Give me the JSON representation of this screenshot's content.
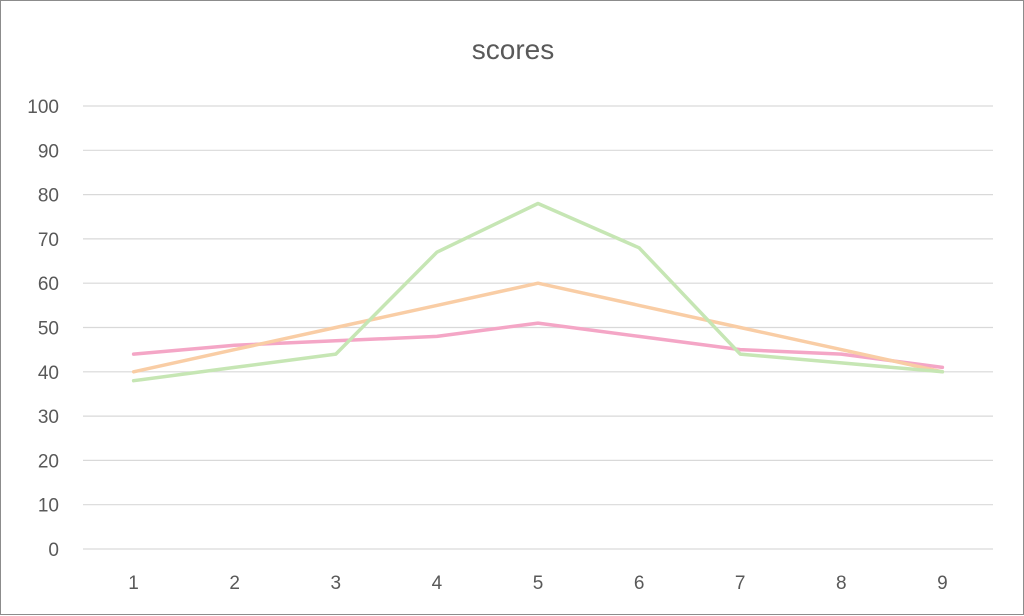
{
  "chart_data": {
    "type": "line",
    "title": "scores",
    "xlabel": "",
    "ylabel": "",
    "x": [
      1,
      2,
      3,
      4,
      5,
      6,
      7,
      8,
      9
    ],
    "ylim": [
      0,
      100
    ],
    "yticks": [
      0,
      10,
      20,
      30,
      40,
      50,
      60,
      70,
      80,
      90,
      100
    ],
    "grid": true,
    "legend": "none",
    "series": [
      {
        "color": "#f4a6c6",
        "values": [
          44,
          46,
          47,
          48,
          51,
          48,
          45,
          44,
          41
        ]
      },
      {
        "color": "#f9cda5",
        "values": [
          40,
          45,
          50,
          55,
          60,
          55,
          50,
          45,
          40
        ]
      },
      {
        "color": "#c6e6b4",
        "values": [
          38,
          41,
          44,
          67,
          78,
          68,
          44,
          42,
          40
        ]
      }
    ]
  }
}
